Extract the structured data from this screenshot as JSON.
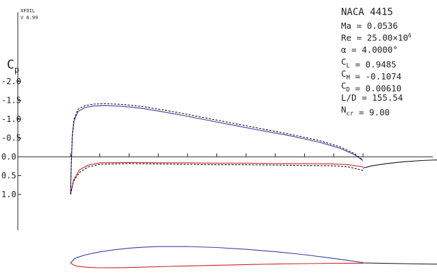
{
  "chart_data": {
    "type": "line",
    "program": "XFOIL",
    "version": "V 6.99",
    "ylabel_main": "C",
    "ylabel_sub": "p",
    "yticks": [
      "-2.0",
      "-1.5",
      "-1.0",
      "-0.5",
      "0.0",
      "0.5",
      "1.0"
    ],
    "ylim": [
      -2.0,
      1.0
    ],
    "y_inverted": true,
    "xlim": [
      0.0,
      1.3
    ],
    "airfoil": "NACA 4415",
    "params": [
      {
        "label": "Ma",
        "sub": "",
        "eq": "=",
        "value": "0.0536"
      },
      {
        "label": "Re",
        "sub": "",
        "eq": "=",
        "value": "25.00×10",
        "sup": "6"
      },
      {
        "label": "α",
        "sub": "",
        "eq": "=",
        "value": "4.0000°"
      },
      {
        "label": "C",
        "sub": "L",
        "eq": "=",
        "value": "0.9485"
      },
      {
        "label": "C",
        "sub": "M",
        "eq": "=",
        "value": "-0.1074"
      },
      {
        "label": "C",
        "sub": "D",
        "eq": "=",
        "value": "0.00610"
      },
      {
        "label": "L/D",
        "sub": "",
        "eq": "=",
        "value": "155.54"
      },
      {
        "label": "N",
        "sub": "cr",
        "eq": "=",
        "value": "9.00"
      }
    ],
    "series": [
      {
        "name": "",
        "style": "solid",
        "color": "#3a3aaa",
        "x": [
          0.0,
          0.002,
          0.006,
          0.012,
          0.025,
          0.05,
          0.08,
          0.12,
          0.18,
          0.25,
          0.35,
          0.45,
          0.55,
          0.65,
          0.75,
          0.85,
          0.92,
          0.97,
          1.0
        ],
        "y": [
          1.0,
          0.3,
          -0.55,
          -0.95,
          -1.2,
          -1.31,
          -1.35,
          -1.36,
          -1.34,
          -1.28,
          -1.15,
          -1.0,
          -0.85,
          -0.7,
          -0.56,
          -0.39,
          -0.23,
          -0.06,
          0.1
        ]
      },
      {
        "name": "",
        "style": "solid",
        "color": "#cc2222",
        "x": [
          0.0,
          0.01,
          0.03,
          0.06,
          0.1,
          0.2,
          0.3,
          0.4,
          0.5,
          0.6,
          0.7,
          0.8,
          0.9,
          0.95,
          1.0
        ],
        "y": [
          1.0,
          0.62,
          0.35,
          0.22,
          0.16,
          0.15,
          0.16,
          0.16,
          0.17,
          0.17,
          0.18,
          0.18,
          0.19,
          0.21,
          0.27
        ]
      },
      {
        "name": "",
        "style": "dashed",
        "color": "#111111",
        "x": [
          0.0,
          0.002,
          0.006,
          0.012,
          0.025,
          0.05,
          0.08,
          0.12,
          0.18,
          0.25,
          0.35,
          0.45,
          0.55,
          0.65,
          0.75,
          0.85,
          0.92,
          0.97,
          1.0
        ],
        "y": [
          1.0,
          0.3,
          -0.6,
          -1.0,
          -1.26,
          -1.36,
          -1.4,
          -1.41,
          -1.39,
          -1.33,
          -1.2,
          -1.05,
          -0.9,
          -0.75,
          -0.6,
          -0.43,
          -0.27,
          -0.09,
          0.09
        ]
      },
      {
        "name": "",
        "style": "dashed",
        "color": "#111111",
        "x": [
          0.0,
          0.01,
          0.03,
          0.06,
          0.1,
          0.2,
          0.3,
          0.4,
          0.5,
          0.6,
          0.7,
          0.8,
          0.9,
          0.95,
          1.0
        ],
        "y": [
          1.0,
          0.65,
          0.42,
          0.27,
          0.2,
          0.18,
          0.19,
          0.2,
          0.21,
          0.21,
          0.22,
          0.23,
          0.24,
          0.27,
          0.36
        ]
      },
      {
        "name": "",
        "style": "solid",
        "color": "#111111",
        "x": [
          1.0,
          1.03,
          1.08,
          1.14,
          1.2,
          1.26,
          1.3
        ],
        "y": [
          0.3,
          0.24,
          0.18,
          0.13,
          0.1,
          0.08,
          0.08
        ]
      }
    ],
    "airfoil_shape": {
      "upper_x": [
        0.0,
        0.0125,
        0.025,
        0.05,
        0.075,
        0.1,
        0.15,
        0.2,
        0.25,
        0.3,
        0.4,
        0.5,
        0.6,
        0.7,
        0.8,
        0.9,
        0.95,
        1.0
      ],
      "upper_y": [
        0.0,
        0.0244,
        0.0339,
        0.0473,
        0.0576,
        0.0659,
        0.0789,
        0.088,
        0.0941,
        0.0976,
        0.098,
        0.0919,
        0.0814,
        0.0669,
        0.0489,
        0.0271,
        0.0147,
        0.0016
      ],
      "lower_x": [
        0.0,
        0.0125,
        0.025,
        0.05,
        0.075,
        0.1,
        0.15,
        0.2,
        0.25,
        0.3,
        0.4,
        0.5,
        0.6,
        0.7,
        0.8,
        0.9,
        0.95,
        1.0
      ],
      "lower_y": [
        0.0,
        -0.0143,
        -0.0195,
        -0.0249,
        -0.0274,
        -0.0286,
        -0.0288,
        -0.0274,
        -0.025,
        -0.0226,
        -0.018,
        -0.014,
        -0.01,
        -0.0065,
        -0.0039,
        -0.0022,
        -0.0016,
        -0.0016
      ],
      "wake_x": [
        1.0,
        1.1,
        1.2,
        1.3
      ],
      "wake_y": [
        0.0,
        -0.003,
        -0.006,
        -0.008
      ]
    }
  }
}
